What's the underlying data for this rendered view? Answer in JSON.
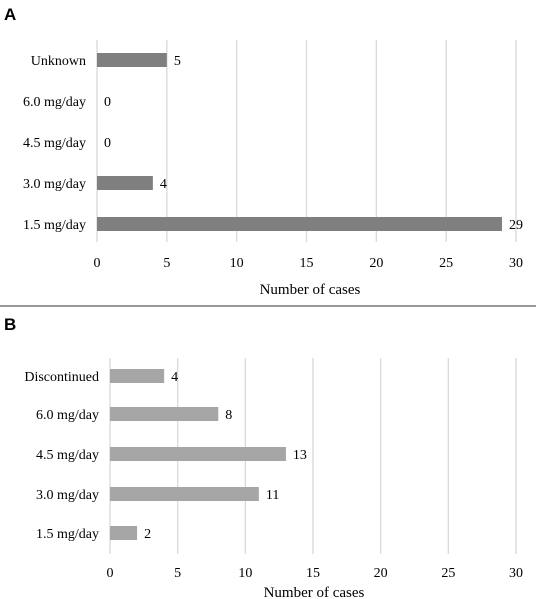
{
  "chart_data": [
    {
      "panel": "A",
      "type": "bar",
      "orientation": "horizontal",
      "categories": [
        "Unknown",
        "6.0 mg/day",
        "4.5 mg/day",
        "3.0 mg/day",
        "1.5 mg/day"
      ],
      "values": [
        5,
        0,
        0,
        4,
        29
      ],
      "xlabel": "Number of cases",
      "ylabel": "",
      "xlim": [
        0,
        30
      ],
      "ticks": [
        "0",
        "5",
        "10",
        "15",
        "20",
        "25",
        "30"
      ],
      "grid": "vertical",
      "bar_color": "#7f7f7f"
    },
    {
      "panel": "B",
      "type": "bar",
      "orientation": "horizontal",
      "categories": [
        "Discontinued",
        "6.0 mg/day",
        "4.5 mg/day",
        "3.0 mg/day",
        "1.5 mg/day"
      ],
      "values": [
        4,
        8,
        13,
        11,
        2
      ],
      "xlabel": "Number of cases",
      "ylabel": "",
      "xlim": [
        0,
        30
      ],
      "ticks": [
        "0",
        "5",
        "10",
        "15",
        "20",
        "25",
        "30"
      ],
      "grid": "vertical",
      "bar_color": "#a6a6a6"
    }
  ]
}
